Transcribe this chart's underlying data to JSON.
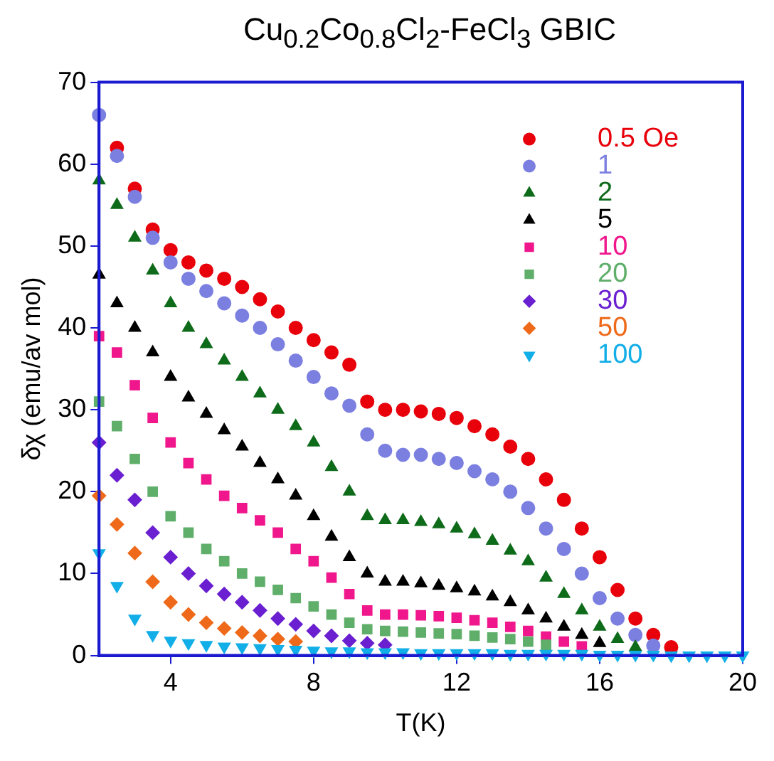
{
  "chart_data": {
    "type": "scatter",
    "title": "Cu$_{0.2}$Co$_{0.8}$Cl$_{2}$-FeCl$_{3}$ GBIC",
    "xlabel": "T(K)",
    "ylabel": "δχ (emu/av mol)",
    "x": [
      2,
      2.5,
      3,
      3.5,
      4,
      4.5,
      5,
      5.5,
      6,
      6.5,
      7,
      7.5,
      8,
      8.5,
      9,
      9.5,
      10,
      10.5,
      11,
      11.5,
      12,
      12.5,
      13,
      13.5,
      14,
      14.5,
      15,
      15.5,
      16,
      16.5,
      17,
      17.5,
      18,
      18.5,
      19,
      19.5,
      20
    ],
    "xlim": [
      2,
      20
    ],
    "xticks": [
      4,
      8,
      12,
      16,
      20
    ],
    "ylim": [
      0,
      70
    ],
    "yticks": [
      0,
      10,
      20,
      30,
      40,
      50,
      60,
      70
    ],
    "grid": false,
    "legend": "top right",
    "series": [
      {
        "name": "0.5 Oe",
        "color": "#e8000b",
        "marker": "circle",
        "values": [
          null,
          62,
          57,
          52,
          49.5,
          48,
          47,
          46,
          45,
          43.5,
          42,
          40,
          38.5,
          37,
          35.5,
          31,
          30,
          30,
          29.8,
          29.5,
          29,
          28,
          27,
          25.5,
          24,
          21.5,
          19,
          15.5,
          12,
          8,
          4.5,
          2.5,
          1,
          null,
          null,
          null,
          null
        ]
      },
      {
        "name": "1",
        "color": "#7b7fe0",
        "marker": "circle",
        "values": [
          66,
          61,
          56,
          51,
          48,
          46,
          44.5,
          43,
          41.5,
          40,
          38,
          36,
          34,
          32,
          30.5,
          27,
          25,
          24.5,
          24.5,
          24,
          23.5,
          22.5,
          21.5,
          20,
          18,
          15.5,
          13,
          10,
          7,
          4.5,
          2.5,
          1.2,
          null,
          null,
          null,
          null,
          null
        ]
      },
      {
        "name": "2",
        "color": "#0e6b1a",
        "marker": "triangle",
        "values": [
          58,
          55,
          51,
          47,
          43,
          40,
          38,
          36,
          34,
          32,
          30,
          28,
          26,
          23,
          20,
          17,
          16.5,
          16.5,
          16.3,
          16,
          15.5,
          14.8,
          14,
          12.8,
          11.5,
          9.5,
          7.5,
          5.5,
          3.5,
          2,
          1,
          null,
          null,
          null,
          null,
          null,
          null
        ]
      },
      {
        "name": "5",
        "color": "#000000",
        "marker": "triangle",
        "values": [
          46.5,
          43,
          40,
          37,
          34,
          31.5,
          29.5,
          27.5,
          25.5,
          23.5,
          21.5,
          19.5,
          17,
          14.5,
          12,
          10,
          9,
          9,
          8.8,
          8.5,
          8.2,
          7.8,
          7.2,
          6.5,
          5.5,
          4.5,
          3.5,
          2.5,
          1.5,
          null,
          null,
          null,
          null,
          null,
          null,
          null,
          null
        ]
      },
      {
        "name": "10",
        "color": "#f0168c",
        "marker": "square",
        "values": [
          39,
          37,
          33,
          29,
          26,
          23.5,
          21.5,
          19.5,
          18,
          16.5,
          15,
          13,
          11.5,
          9.5,
          7.5,
          5.5,
          5,
          5,
          4.9,
          4.8,
          4.6,
          4.3,
          4,
          3.5,
          3,
          2.3,
          1.7,
          1.1,
          null,
          null,
          null,
          null,
          null,
          null,
          null,
          null,
          null
        ]
      },
      {
        "name": "20",
        "color": "#5fae6a",
        "marker": "square",
        "values": [
          31,
          28,
          24,
          20,
          17,
          15,
          13,
          11.5,
          10,
          9,
          8,
          7,
          6,
          5,
          4,
          3.2,
          3,
          2.9,
          2.8,
          2.7,
          2.6,
          2.4,
          2.2,
          2,
          1.7,
          1.3,
          null,
          null,
          null,
          null,
          null,
          null,
          null,
          null,
          null,
          null,
          null
        ]
      },
      {
        "name": "30",
        "color": "#6a1fd0",
        "marker": "diamond",
        "values": [
          26,
          22,
          19,
          15,
          12,
          10,
          8.5,
          7.5,
          6.5,
          5.5,
          4.5,
          3.8,
          3,
          2.4,
          1.8,
          1.5,
          1.3,
          null,
          null,
          null,
          null,
          null,
          null,
          null,
          null,
          null,
          null,
          null,
          null,
          null,
          null,
          null,
          null,
          null,
          null,
          null,
          null
        ]
      },
      {
        "name": "50",
        "color": "#ee6a1a",
        "marker": "diamond",
        "values": [
          19.5,
          16,
          12.5,
          9,
          6.5,
          5,
          4,
          3.3,
          2.8,
          2.4,
          2,
          1.7,
          null,
          null,
          null,
          null,
          null,
          null,
          null,
          null,
          null,
          null,
          null,
          null,
          null,
          null,
          null,
          null,
          null,
          null,
          null,
          null,
          null,
          null,
          null,
          null,
          null
        ]
      },
      {
        "name": "100",
        "color": "#12aee8",
        "marker": "triangle-down",
        "values": [
          12.5,
          8.5,
          4.5,
          2.5,
          1.8,
          1.5,
          1.3,
          1.1,
          1,
          0.9,
          0.8,
          0.7,
          0.6,
          0.5,
          0.5,
          0.4,
          0.4,
          0.4,
          0.3,
          0.3,
          0.3,
          0.3,
          0.3,
          0.2,
          0.2,
          0.2,
          0.2,
          0.2,
          0.1,
          0.1,
          0.1,
          0.1,
          0,
          0,
          0,
          0,
          0
        ]
      }
    ]
  }
}
